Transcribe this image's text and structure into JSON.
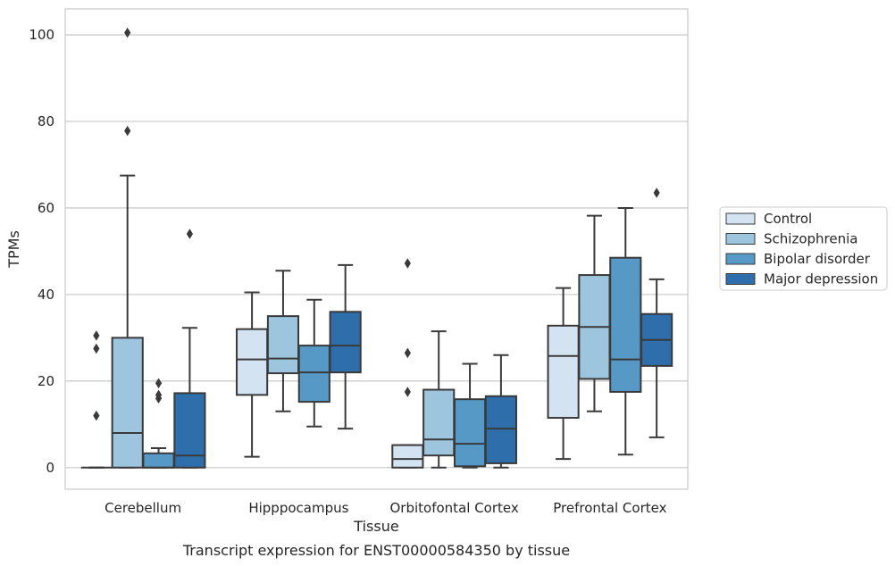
{
  "chart_data": {
    "type": "box",
    "caption": "Transcript expression for ENST00000584350 by tissue",
    "xlabel": "Tissue",
    "ylabel": "TPMs",
    "ylim": [
      -5,
      106
    ],
    "yticks": [
      0,
      20,
      40,
      60,
      80,
      100
    ],
    "grid": "horizontal",
    "legend_position": "right",
    "categories": [
      "Cerebellum",
      "Hipppocampus",
      "Orbitofontal Cortex",
      "Prefrontal Cortex"
    ],
    "series": [
      {
        "name": "Control",
        "color": "#d4e3f1",
        "boxes": [
          {
            "whisker_low": 0,
            "q1": 0,
            "median": 0,
            "q3": 0,
            "whisker_high": 0,
            "outliers": [
              12,
              27.5,
              30.5
            ]
          },
          {
            "whisker_low": 2.5,
            "q1": 16.8,
            "median": 25,
            "q3": 32,
            "whisker_high": 40.5,
            "outliers": []
          },
          {
            "whisker_low": 0,
            "q1": 0,
            "median": 2,
            "q3": 5.2,
            "whisker_high": 5.2,
            "outliers": [
              17.5,
              26.5,
              47.2
            ]
          },
          {
            "whisker_low": 2,
            "q1": 11.5,
            "median": 25.8,
            "q3": 32.8,
            "whisker_high": 41.5,
            "outliers": []
          }
        ]
      },
      {
        "name": "Schizophrenia",
        "color": "#9dc5de",
        "boxes": [
          {
            "whisker_low": 0,
            "q1": 0,
            "median": 8,
            "q3": 30,
            "whisker_high": 67.5,
            "outliers": [
              77.8,
              100.5
            ]
          },
          {
            "whisker_low": 13,
            "q1": 21.8,
            "median": 25.2,
            "q3": 35,
            "whisker_high": 45.5,
            "outliers": []
          },
          {
            "whisker_low": 0,
            "q1": 2.8,
            "median": 6.5,
            "q3": 18,
            "whisker_high": 31.5,
            "outliers": []
          },
          {
            "whisker_low": 13,
            "q1": 20.5,
            "median": 32.5,
            "q3": 44.5,
            "whisker_high": 58.2,
            "outliers": []
          }
        ]
      },
      {
        "name": "Bipolar disorder",
        "color": "#5699c6",
        "boxes": [
          {
            "whisker_low": 0,
            "q1": 0,
            "median": 0,
            "q3": 3.3,
            "whisker_high": 4.5,
            "outliers": [
              16,
              16.8,
              19.5
            ]
          },
          {
            "whisker_low": 9.5,
            "q1": 15.2,
            "median": 22,
            "q3": 28.2,
            "whisker_high": 38.8,
            "outliers": []
          },
          {
            "whisker_low": 0,
            "q1": 0.3,
            "median": 5.5,
            "q3": 15.8,
            "whisker_high": 24,
            "outliers": []
          },
          {
            "whisker_low": 3,
            "q1": 17.5,
            "median": 25,
            "q3": 48.5,
            "whisker_high": 60,
            "outliers": []
          }
        ]
      },
      {
        "name": "Major depression",
        "color": "#2d6eab",
        "boxes": [
          {
            "whisker_low": 0,
            "q1": 0,
            "median": 2.8,
            "q3": 17.2,
            "whisker_high": 32.3,
            "outliers": [
              54
            ]
          },
          {
            "whisker_low": 9,
            "q1": 22,
            "median": 28.2,
            "q3": 36,
            "whisker_high": 46.8,
            "outliers": []
          },
          {
            "whisker_low": 0,
            "q1": 1,
            "median": 9,
            "q3": 16.5,
            "whisker_high": 26,
            "outliers": []
          },
          {
            "whisker_low": 7,
            "q1": 23.5,
            "median": 29.5,
            "q3": 35.5,
            "whisker_high": 43.5,
            "outliers": [
              63.5
            ]
          }
        ]
      }
    ]
  }
}
